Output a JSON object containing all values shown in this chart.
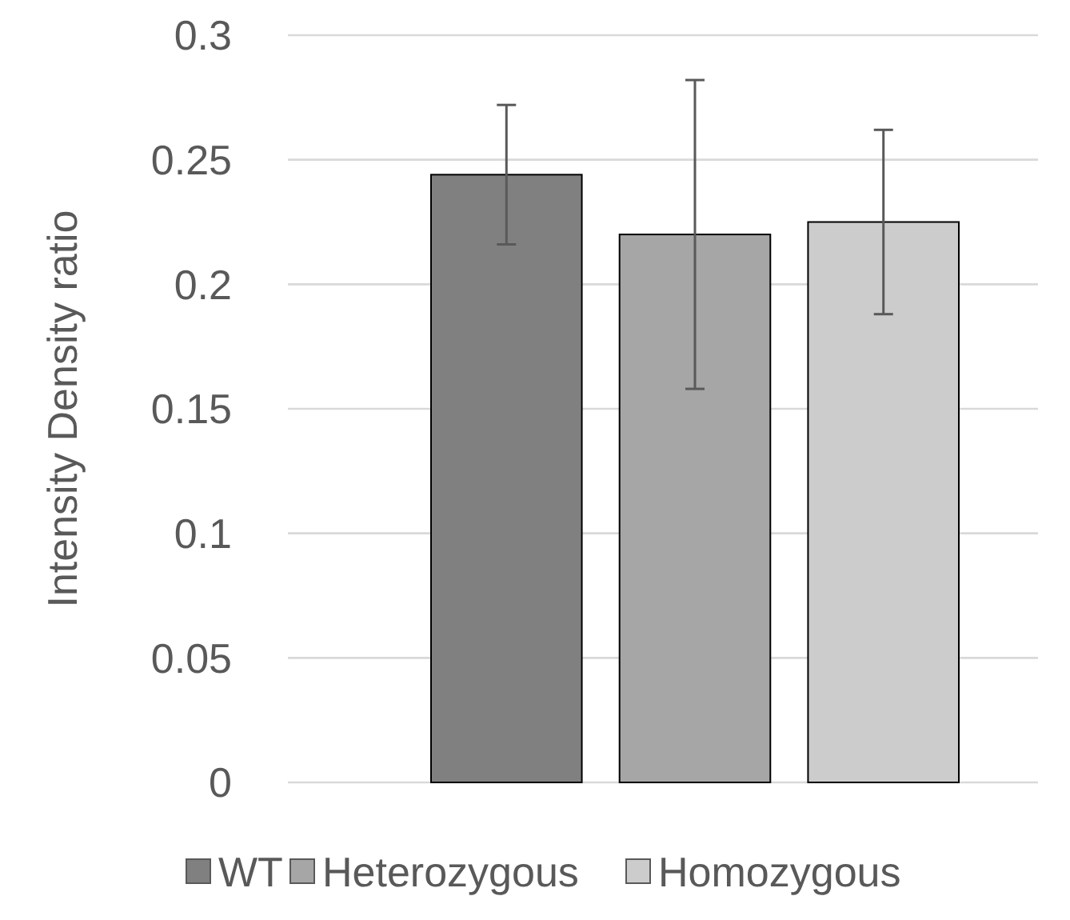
{
  "chart_data": {
    "type": "bar",
    "ylabel": "Intensity Density ratio",
    "categories": [
      null
    ],
    "series": [
      {
        "name": "WT",
        "color": "#808080",
        "values": [
          0.244
        ],
        "errors": [
          0.028
        ]
      },
      {
        "name": "Heterozygous",
        "color": "#a6a6a6",
        "values": [
          0.22
        ],
        "errors": [
          0.062
        ]
      },
      {
        "name": "Homozygous",
        "color": "#cccccc",
        "values": [
          0.225
        ],
        "errors": [
          0.037
        ]
      }
    ],
    "ylim": [
      0,
      0.3
    ],
    "yticks": [
      0,
      0.05,
      0.1,
      0.15,
      0.2,
      0.25,
      0.3
    ],
    "grid": "y",
    "legend": "bottom",
    "tick_labels": "y"
  }
}
